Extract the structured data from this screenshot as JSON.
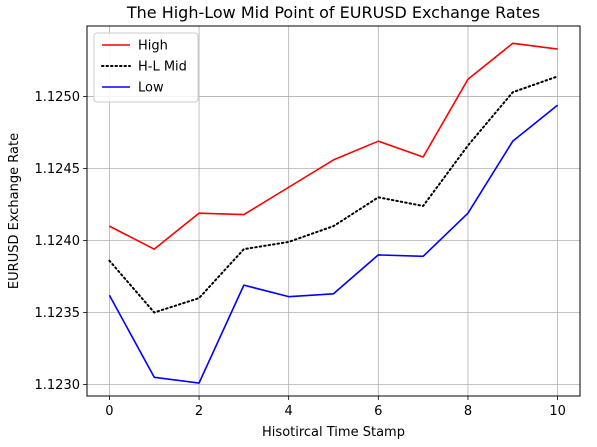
{
  "chart_data": {
    "type": "line",
    "title": "The High-Low Mid Point of EURUSD Exchange Rates",
    "xlabel": "Hisotircal Time Stamp",
    "ylabel": "EURUSD Exchange Rate",
    "x": [
      0,
      1,
      2,
      3,
      4,
      5,
      6,
      7,
      8,
      9,
      10
    ],
    "xlim": [
      -0.5,
      10.5
    ],
    "ylim": [
      1.12292,
      1.12549
    ],
    "xticks": [
      0,
      2,
      4,
      6,
      8,
      10
    ],
    "xtick_labels": [
      "0",
      "2",
      "4",
      "6",
      "8",
      "10"
    ],
    "yticks": [
      1.123,
      1.1235,
      1.124,
      1.1245,
      1.125
    ],
    "ytick_labels": [
      "1.1230",
      "1.1235",
      "1.1240",
      "1.1245",
      "1.1250"
    ],
    "grid": true,
    "legend_position": "top-left",
    "series": [
      {
        "name": "High",
        "color": "#ff0000",
        "style": "solid",
        "values": [
          1.1241,
          1.12394,
          1.12419,
          1.12418,
          1.12437,
          1.12456,
          1.12469,
          1.12458,
          1.12512,
          1.12537,
          1.12533
        ]
      },
      {
        "name": "H-L Mid",
        "color": "#000000",
        "style": "dotted",
        "values": [
          1.12386,
          1.1235,
          1.1236,
          1.12394,
          1.12399,
          1.1241,
          1.1243,
          1.12424,
          1.12466,
          1.12503,
          1.12514
        ]
      },
      {
        "name": "Low",
        "color": "#0000ff",
        "style": "solid",
        "values": [
          1.12362,
          1.12305,
          1.12301,
          1.12369,
          1.12361,
          1.12363,
          1.1239,
          1.12389,
          1.12419,
          1.12469,
          1.12494
        ]
      }
    ]
  }
}
